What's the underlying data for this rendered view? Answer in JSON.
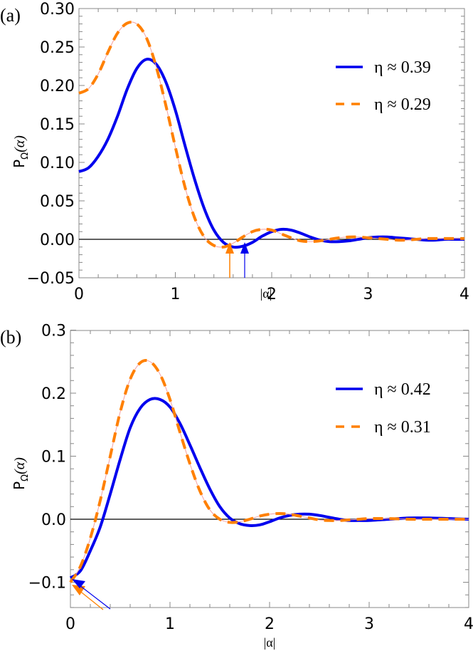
{
  "chart_data": [
    {
      "type": "line",
      "panel_label": "(a)",
      "xlabel": "|α|",
      "ylabel": "P_Ω(α)",
      "xlim": [
        0,
        4
      ],
      "ylim": [
        -0.05,
        0.3
      ],
      "xticks": [
        "0",
        "1",
        "2",
        "3",
        "4"
      ],
      "yticks": [
        "0.30",
        "0.25",
        "0.20",
        "0.15",
        "0.10",
        "0.05",
        "0.00",
        "−0.05"
      ],
      "ytick_values": [
        0.3,
        0.25,
        0.2,
        0.15,
        0.1,
        0.05,
        0.0,
        -0.05
      ],
      "legend": {
        "position": "upper right"
      },
      "series": [
        {
          "name": "η ≈ 0.39",
          "color": "#0000ee",
          "style": "solid",
          "x": [
            0,
            0.1,
            0.2,
            0.3,
            0.4,
            0.5,
            0.6,
            0.7,
            0.8,
            0.9,
            1.0,
            1.1,
            1.2,
            1.3,
            1.4,
            1.5,
            1.6,
            1.7,
            1.8,
            1.9,
            2.0,
            2.1,
            2.2,
            2.3,
            2.4,
            2.5,
            2.6,
            2.7,
            2.8,
            2.9,
            3.0,
            3.1,
            3.2,
            3.3,
            3.4,
            3.5,
            3.6,
            3.7,
            3.8,
            3.9,
            4.0
          ],
          "y": [
            0.088,
            0.093,
            0.108,
            0.13,
            0.16,
            0.195,
            0.222,
            0.234,
            0.228,
            0.205,
            0.168,
            0.122,
            0.078,
            0.04,
            0.012,
            -0.004,
            -0.01,
            -0.009,
            -0.004,
            0.004,
            0.01,
            0.013,
            0.012,
            0.008,
            0.003,
            -0.001,
            -0.003,
            -0.003,
            -0.002,
            0.0,
            0.002,
            0.003,
            0.003,
            0.002,
            0.001,
            0.0,
            -0.001,
            -0.001,
            0.0,
            0.0,
            0.0
          ]
        },
        {
          "name": "η ≈ 0.29",
          "color": "#ff8000",
          "style": "dashed",
          "x": [
            0,
            0.1,
            0.2,
            0.3,
            0.4,
            0.5,
            0.6,
            0.7,
            0.8,
            0.9,
            1.0,
            1.1,
            1.2,
            1.3,
            1.4,
            1.5,
            1.6,
            1.7,
            1.8,
            1.9,
            2.0,
            2.1,
            2.2,
            2.3,
            2.4,
            2.5,
            2.6,
            2.7,
            2.8,
            2.9,
            3.0,
            3.1,
            3.2,
            3.3,
            3.4,
            3.5,
            3.6,
            3.7,
            3.8,
            3.9,
            4.0
          ],
          "y": [
            0.19,
            0.196,
            0.215,
            0.243,
            0.268,
            0.281,
            0.28,
            0.262,
            0.225,
            0.175,
            0.12,
            0.068,
            0.028,
            0.003,
            -0.008,
            -0.01,
            -0.005,
            0.003,
            0.01,
            0.013,
            0.012,
            0.007,
            0.002,
            -0.002,
            -0.003,
            -0.002,
            0.0,
            0.002,
            0.003,
            0.003,
            0.002,
            0.001,
            0.0,
            -0.001,
            -0.001,
            0.0,
            0.001,
            0.001,
            0.001,
            0.001,
            0.001
          ]
        }
      ],
      "annotations": [
        {
          "type": "arrow",
          "x": 1.57,
          "color": "#ff8000",
          "note": "zero of dashed curve minimum"
        },
        {
          "type": "arrow",
          "x": 1.72,
          "color": "#0000ee",
          "note": "minimum of solid curve"
        }
      ]
    },
    {
      "type": "line",
      "panel_label": "(b)",
      "xlabel": "|α|",
      "ylabel": "P_Ω(α)",
      "xlim": [
        0,
        4
      ],
      "ylim": [
        -0.14,
        0.3
      ],
      "xticks": [
        "0",
        "1",
        "2",
        "3",
        "4"
      ],
      "yticks": [
        "0.3",
        "0.2",
        "0.1",
        "0.0",
        "−0.1"
      ],
      "ytick_values": [
        0.3,
        0.2,
        0.1,
        0.0,
        -0.1
      ],
      "legend": {
        "position": "upper right"
      },
      "series": [
        {
          "name": "η ≈ 0.42",
          "color": "#0000ee",
          "style": "solid",
          "x": [
            0,
            0.1,
            0.2,
            0.3,
            0.4,
            0.5,
            0.6,
            0.7,
            0.8,
            0.9,
            1.0,
            1.1,
            1.2,
            1.3,
            1.4,
            1.5,
            1.6,
            1.7,
            1.8,
            1.9,
            2.0,
            2.1,
            2.2,
            2.3,
            2.4,
            2.5,
            2.6,
            2.7,
            2.8,
            2.9,
            3.0,
            3.2,
            3.4,
            3.6,
            3.8,
            4.0
          ],
          "y": [
            -0.093,
            -0.082,
            -0.05,
            -0.012,
            0.04,
            0.095,
            0.145,
            0.176,
            0.19,
            0.19,
            0.178,
            0.152,
            0.118,
            0.082,
            0.048,
            0.02,
            0.002,
            -0.007,
            -0.01,
            -0.009,
            -0.004,
            0.002,
            0.006,
            0.008,
            0.008,
            0.006,
            0.003,
            0.0,
            -0.002,
            -0.002,
            -0.002,
            0.0,
            0.002,
            0.002,
            0.001,
            0.0
          ]
        },
        {
          "name": "η ≈ 0.31",
          "color": "#ff8000",
          "style": "dashed",
          "x": [
            0,
            0.1,
            0.2,
            0.3,
            0.4,
            0.5,
            0.6,
            0.7,
            0.8,
            0.9,
            1.0,
            1.1,
            1.2,
            1.3,
            1.4,
            1.5,
            1.6,
            1.7,
            1.8,
            1.9,
            2.0,
            2.1,
            2.2,
            2.3,
            2.4,
            2.5,
            2.6,
            2.7,
            2.8,
            2.9,
            3.0,
            3.2,
            3.4,
            3.6,
            3.8,
            4.0
          ],
          "y": [
            -0.1,
            -0.075,
            -0.03,
            0.03,
            0.1,
            0.17,
            0.222,
            0.248,
            0.25,
            0.23,
            0.19,
            0.138,
            0.088,
            0.045,
            0.015,
            0.0,
            -0.005,
            -0.004,
            0.0,
            0.005,
            0.008,
            0.009,
            0.008,
            0.005,
            0.002,
            -0.001,
            -0.002,
            -0.002,
            -0.001,
            0.0,
            0.001,
            0.001,
            0.0,
            0.0,
            0.0,
            0.0
          ]
        }
      ],
      "annotations": [
        {
          "type": "arrow",
          "x": 0.0,
          "y": -0.1,
          "color": "#ff8000"
        },
        {
          "type": "arrow",
          "x": 0.0,
          "y": -0.093,
          "color": "#0000ee"
        }
      ]
    }
  ],
  "panels": [
    {
      "label": "(a)",
      "legend": [
        "η ≈ 0.39",
        "η ≈ 0.29"
      ],
      "xlabel": "|α|",
      "ylabel_main": "P",
      "ylabel_sub": "Ω",
      "ylabel_arg": "(α)"
    },
    {
      "label": "(b)",
      "legend": [
        "η ≈ 0.42",
        "η ≈ 0.31"
      ],
      "xlabel": "|α|",
      "ylabel_main": "P",
      "ylabel_sub": "Ω",
      "ylabel_arg": "(α)"
    }
  ]
}
